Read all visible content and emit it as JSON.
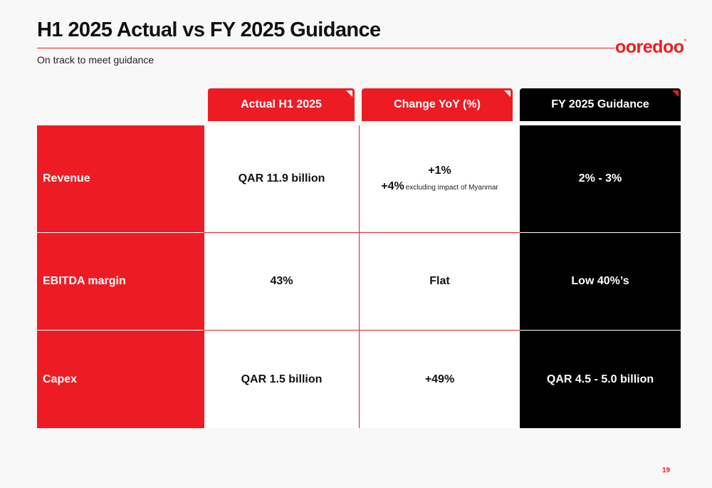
{
  "header": {
    "title": "H1 2025 Actual vs FY 2025 Guidance",
    "subtitle": "On track to meet guidance",
    "logo_text": "ooredoo",
    "logo_mark": "°"
  },
  "columns": [
    "Actual H1 2025",
    "Change YoY (%)",
    "FY 2025 Guidance"
  ],
  "rows": [
    {
      "label": "Revenue",
      "actual": "QAR 11.9 billion",
      "change_main": "+1%",
      "change_sub_value": "+4%",
      "change_sub_note": "excluding impact of Myanmar",
      "guidance": "2% - 3%"
    },
    {
      "label": "EBITDA margin",
      "actual": "43%",
      "change_main": "Flat",
      "guidance": "Low 40%’s"
    },
    {
      "label": "Capex",
      "actual": "QAR 1.5 billion",
      "change_main": "+49%",
      "guidance": "QAR 4.5 - 5.0 billion"
    }
  ],
  "page_number": "19",
  "colors": {
    "brand_red": "#ed1c24",
    "black": "#000000",
    "background": "#f9f8f8"
  }
}
